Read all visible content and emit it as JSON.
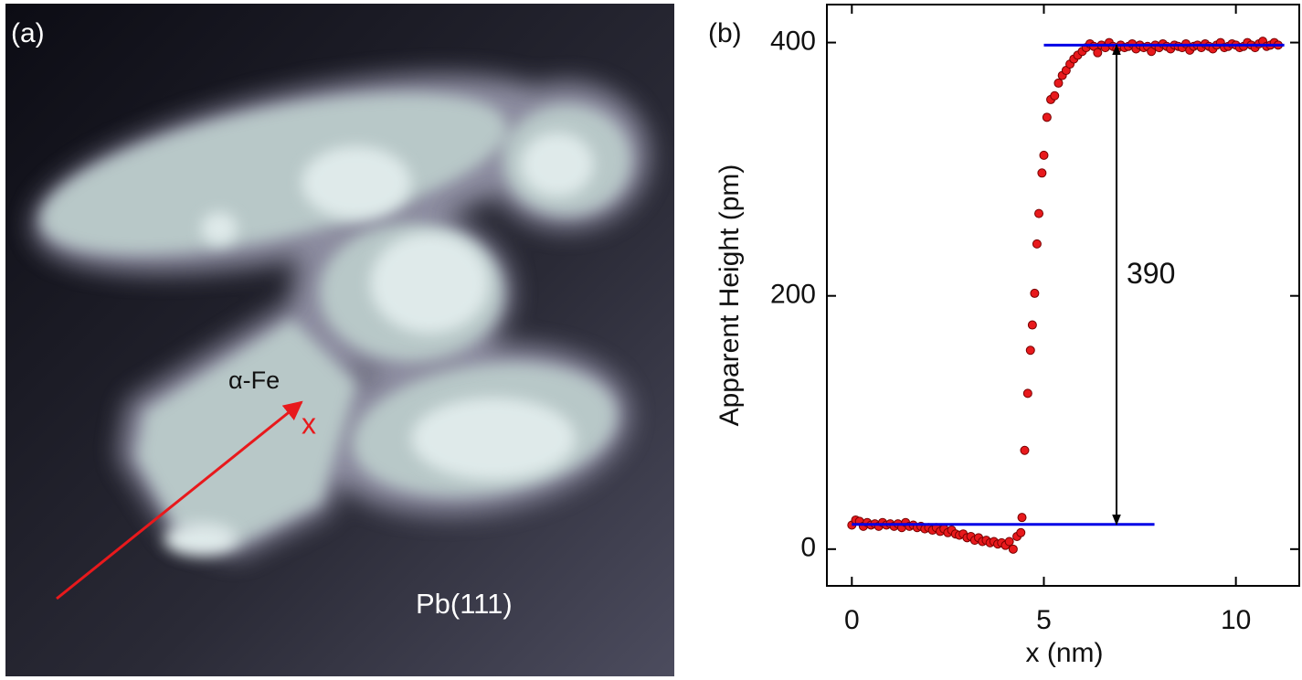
{
  "panel_a": {
    "label": "(a)",
    "region_label": "α-Fe",
    "scan_label": "x",
    "substrate_label": "Pb(111)"
  },
  "chart_data": {
    "type": "scatter",
    "panel_label": "(b)",
    "xlabel": "x (nm)",
    "ylabel": "Apparent Height (pm)",
    "xlim": [
      -0.65,
      11.65
    ],
    "ylim": [
      -29,
      430
    ],
    "xticks": [
      0,
      5,
      10
    ],
    "yticks": [
      0,
      200,
      400
    ],
    "color": "#e8191c",
    "x": [
      0.0,
      0.1,
      0.2,
      0.3,
      0.4,
      0.5,
      0.6,
      0.7,
      0.8,
      0.9,
      1.0,
      1.1,
      1.2,
      1.3,
      1.4,
      1.5,
      1.6,
      1.7,
      1.8,
      1.9,
      2.0,
      2.1,
      2.2,
      2.3,
      2.4,
      2.5,
      2.6,
      2.7,
      2.8,
      2.9,
      3.0,
      3.1,
      3.2,
      3.3,
      3.4,
      3.5,
      3.6,
      3.7,
      3.8,
      3.9,
      4.0,
      4.1,
      4.2,
      4.3,
      4.4,
      4.43,
      4.5,
      4.58,
      4.65,
      4.7,
      4.76,
      4.82,
      4.87,
      4.95,
      5.0,
      5.08,
      5.18,
      5.28,
      5.38,
      5.48,
      5.58,
      5.68,
      5.78,
      5.88,
      6.0,
      6.1,
      6.2,
      6.3,
      6.4,
      6.5,
      6.6,
      6.7,
      6.8,
      6.9,
      7.0,
      7.1,
      7.2,
      7.3,
      7.4,
      7.5,
      7.6,
      7.7,
      7.8,
      7.9,
      8.0,
      8.1,
      8.2,
      8.3,
      8.4,
      8.5,
      8.6,
      8.7,
      8.8,
      8.9,
      9.0,
      9.1,
      9.2,
      9.3,
      9.4,
      9.5,
      9.6,
      9.7,
      9.8,
      9.9,
      10.0,
      10.1,
      10.2,
      10.3,
      10.4,
      10.5,
      10.6,
      10.7,
      10.8,
      10.9,
      11.0,
      11.1
    ],
    "values": [
      19,
      23,
      22,
      18,
      21,
      19,
      20,
      18,
      21,
      19,
      20,
      18,
      20,
      17,
      21,
      18,
      19,
      17,
      18,
      16,
      17,
      15,
      17,
      14,
      16,
      13,
      15,
      12,
      11,
      12,
      9,
      10,
      7,
      9,
      6,
      7,
      5,
      6,
      4,
      5,
      3,
      6,
      0,
      10,
      13,
      25,
      78,
      123,
      157,
      177,
      202,
      241,
      265,
      297,
      311,
      341,
      355,
      358,
      368,
      374,
      378,
      383,
      387,
      390,
      393,
      396,
      399,
      397,
      392,
      398,
      396,
      400,
      397,
      395,
      398,
      396,
      397,
      399,
      395,
      398,
      396,
      397,
      393,
      398,
      396,
      399,
      397,
      395,
      398,
      397,
      396,
      399,
      394,
      397,
      398,
      396,
      399,
      397,
      395,
      398,
      400,
      396,
      397,
      399,
      398,
      396,
      397,
      400,
      398,
      396,
      399,
      401,
      397,
      398,
      400,
      398
    ],
    "lines": [
      {
        "color": "#0000e6",
        "x": [
          0,
          7.88
        ],
        "values": [
          19.5,
          19.5
        ]
      },
      {
        "color": "#0000e6",
        "x": [
          5.0,
          11.26
        ],
        "values": [
          398,
          398
        ]
      }
    ],
    "annotation": "390"
  }
}
